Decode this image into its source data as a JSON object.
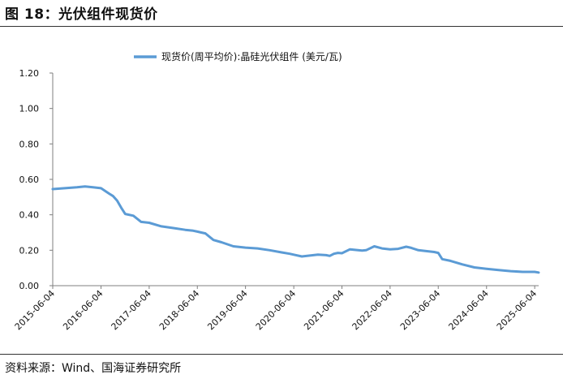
{
  "figure": {
    "title": "图 18：光伏组件现货价",
    "source": "资料来源：Wind、国海证券研究所"
  },
  "colors": {
    "line": "#5b9bd5",
    "axis": "#7f7f7f",
    "text": "#111111"
  },
  "chart_data": {
    "type": "line",
    "title": "",
    "xlabel": "",
    "ylabel": "",
    "ylim": [
      0,
      1.2
    ],
    "yticks": [
      "0.00",
      "0.20",
      "0.40",
      "0.60",
      "0.80",
      "1.00",
      "1.20"
    ],
    "xticks": [
      "2015-06-04",
      "2016-06-04",
      "2017-06-04",
      "2018-06-04",
      "2019-06-04",
      "2020-06-04",
      "2021-06-04",
      "2022-06-04",
      "2023-06-04",
      "2024-06-04",
      "2025-06-04"
    ],
    "xlim": [
      "2015-06-04",
      "2025-07-04"
    ],
    "grid": false,
    "legend_position": "top-center",
    "series": [
      {
        "name": "现货价(周平均价):晶硅光伏组件 (美元/瓦)",
        "x": [
          "2015-06-04",
          "2015-09-04",
          "2015-12-04",
          "2016-02-04",
          "2016-04-04",
          "2016-06-04",
          "2016-08-04",
          "2016-09-04",
          "2016-10-04",
          "2016-11-04",
          "2016-12-04",
          "2017-02-04",
          "2017-04-04",
          "2017-06-04",
          "2017-09-04",
          "2017-12-04",
          "2018-03-04",
          "2018-05-04",
          "2018-06-04",
          "2018-07-04",
          "2018-08-04",
          "2018-10-04",
          "2018-12-04",
          "2019-03-04",
          "2019-06-04",
          "2019-09-04",
          "2019-12-04",
          "2020-03-04",
          "2020-05-04",
          "2020-06-04",
          "2020-08-04",
          "2020-10-04",
          "2020-12-04",
          "2021-02-04",
          "2021-03-04",
          "2021-04-04",
          "2021-05-04",
          "2021-06-04",
          "2021-08-04",
          "2021-10-04",
          "2021-11-04",
          "2021-12-04",
          "2022-02-04",
          "2022-04-04",
          "2022-06-04",
          "2022-08-04",
          "2022-10-04",
          "2022-11-04",
          "2023-01-04",
          "2023-03-04",
          "2023-05-04",
          "2023-06-04",
          "2023-07-04",
          "2023-09-04",
          "2023-12-04",
          "2024-03-04",
          "2024-06-04",
          "2024-09-04",
          "2024-12-04",
          "2025-03-04",
          "2025-06-04",
          "2025-07-04"
        ],
        "values": [
          0.545,
          0.55,
          0.555,
          0.56,
          0.555,
          0.55,
          0.52,
          0.505,
          0.48,
          0.44,
          0.405,
          0.395,
          0.36,
          0.355,
          0.335,
          0.325,
          0.315,
          0.31,
          0.305,
          0.3,
          0.295,
          0.258,
          0.245,
          0.222,
          0.215,
          0.21,
          0.2,
          0.188,
          0.18,
          0.175,
          0.165,
          0.17,
          0.175,
          0.172,
          0.168,
          0.18,
          0.185,
          0.183,
          0.205,
          0.2,
          0.198,
          0.2,
          0.222,
          0.21,
          0.205,
          0.208,
          0.22,
          0.215,
          0.2,
          0.195,
          0.19,
          0.185,
          0.15,
          0.14,
          0.12,
          0.103,
          0.095,
          0.088,
          0.082,
          0.078,
          0.078,
          0.074
        ]
      }
    ]
  }
}
